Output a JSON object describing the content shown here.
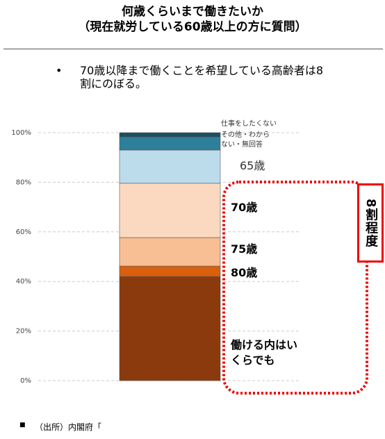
{
  "chart_data": {
    "type": "stacked-bar",
    "title": "何歳くらいまで働きたいか",
    "subtitle": "（現在就労している60歳以上の方に質問）",
    "note": "70歳以降まで働くことを希望している高齢者は8割にのぼる。",
    "annotation": "8割程度",
    "source": "（出所）内閣府「",
    "ylim": [
      0,
      100
    ],
    "yticks": [
      {
        "value": 0,
        "label": "0%"
      },
      {
        "value": 20,
        "label": "20%"
      },
      {
        "value": 40,
        "label": "40%"
      },
      {
        "value": 60,
        "label": "60%"
      },
      {
        "value": 80,
        "label": "80%"
      },
      {
        "value": 100,
        "label": "100%"
      }
    ],
    "grid": true,
    "series": [
      {
        "name": "働ける内はいくらでも",
        "color": "#8b3a0e",
        "values": [
          42.0
        ]
      },
      {
        "name": "80歳",
        "color": "#d9600f",
        "values": [
          4.2
        ]
      },
      {
        "name": "75歳",
        "color": "#f8be94",
        "values": [
          11.5
        ]
      },
      {
        "name": "70歳",
        "color": "#fbd9c0",
        "values": [
          21.9
        ]
      },
      {
        "name": "65歳",
        "color": "#bcdcec",
        "values": [
          13.4
        ]
      },
      {
        "name": "その他・わからない・無回答",
        "color": "#2e7f99",
        "values": [
          5.3
        ]
      },
      {
        "name": "仕事をしたくない",
        "color": "#1b4f62",
        "values": [
          1.7
        ]
      }
    ]
  }
}
